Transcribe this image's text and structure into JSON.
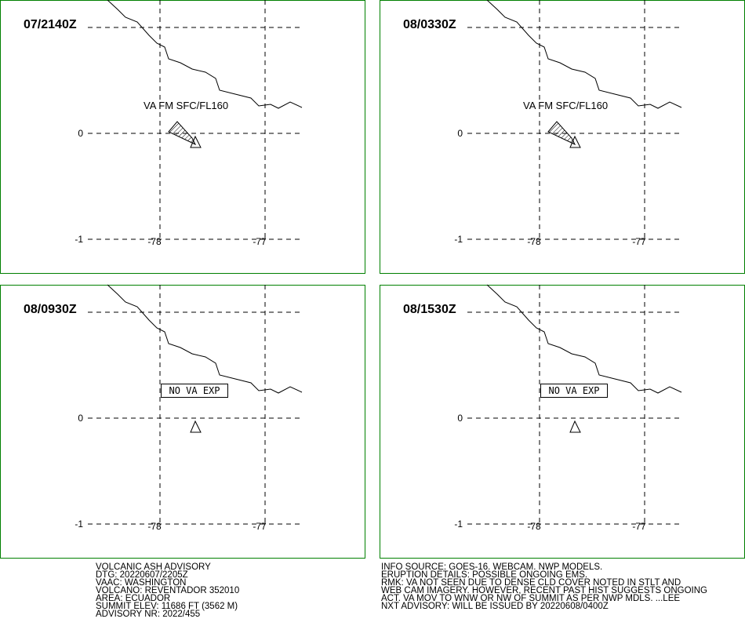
{
  "panels": [
    {
      "time": "07/2140Z",
      "label": "VA FM SFC/FL160"
    },
    {
      "time": "08/0330Z",
      "label": "VA FM SFC/FL160"
    },
    {
      "time": "08/0930Z",
      "note": "NO VA EXP"
    },
    {
      "time": "08/1530Z",
      "note": "NO VA EXP"
    }
  ],
  "grid": {
    "lat_labels": [
      "0",
      "-1"
    ],
    "lon_labels": [
      "-78",
      "-77"
    ]
  },
  "advisory_left": [
    "VOLCANIC ASH ADVISORY",
    "DTG: 20220607/2205Z",
    "VAAC: WASHINGTON",
    "VOLCANO: REVENTADOR 352010",
    "AREA: ECUADOR",
    "SUMMIT ELEV: 11686 FT (3562 M)",
    "ADVISORY NR: 2022/455"
  ],
  "advisory_right": [
    "INFO SOURCE: GOES-16. WEBCAM. NWP MODELS.",
    "ERUPTION DETAILS: POSSIBLE ONGOING EMS.",
    "RMK: VA NOT SEEN DUE TO DENSE CLD COVER NOTED IN STLT AND",
    "WEB CAM IMAGERY. HOWEVER, RECENT PAST HIST SUGGESTS ONGOING",
    "ACT. VA MOV TO WNW OR NW OF SUMMIT AS PER NWP MDLS. ...LEE",
    "NXT ADVISORY: WILL BE ISSUED BY 20220608/0400Z"
  ]
}
